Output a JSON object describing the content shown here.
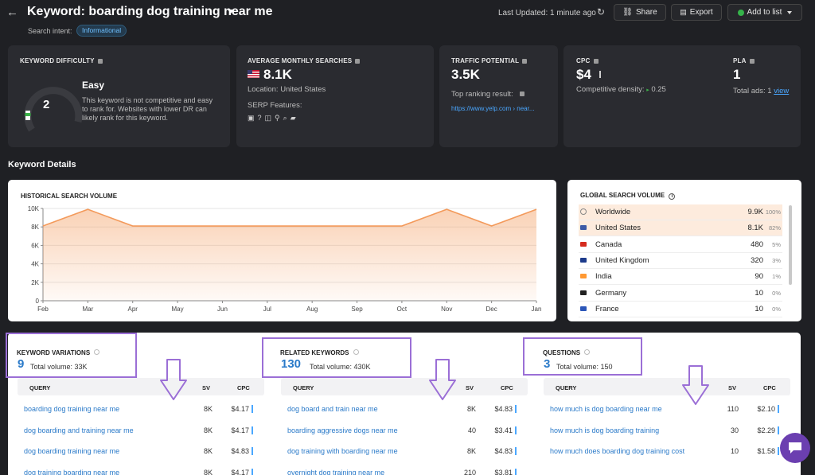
{
  "header": {
    "back_icon": "arrow-left-icon",
    "title": "Keyword: boarding dog training near me",
    "search_intent_label": "Search intent:",
    "search_intent_value": "Informational",
    "last_updated": "Last Updated: 1 minute ago",
    "share_label": "Share",
    "export_label": "Export",
    "add_to_list_label": "Add to list"
  },
  "cards": {
    "difficulty": {
      "title": "KEYWORD DIFFICULTY",
      "value": "2",
      "level": "Easy",
      "gauge_fraction": 0.02,
      "description": "This keyword is not competitive and easy to rank for. Websites with lower DR can likely rank for this keyword."
    },
    "searches": {
      "title": "AVERAGE MONTHLY SEARCHES",
      "value": "8.1K",
      "location": "Location: United States",
      "serp_label": "SERP Features:"
    },
    "traffic": {
      "title": "TRAFFIC POTENTIAL",
      "value": "3.5K",
      "top_ranking_label": "Top ranking result:",
      "top_ranking_url": "https://www.yelp.com › near..."
    },
    "cpc": {
      "title": "CPC",
      "value": "$4",
      "density": "Competitive density:",
      "density_value": "0.25"
    },
    "pla": {
      "title": "PLA",
      "value": "1",
      "total_ads": "Total ads: 1",
      "view_link": "view"
    }
  },
  "section_title": "Keyword Details",
  "historical": {
    "title": "HISTORICAL SEARCH VOLUME",
    "chart_data": {
      "type": "area",
      "x": [
        "Feb",
        "Mar",
        "Apr",
        "May",
        "Jun",
        "Jul",
        "Aug",
        "Sep",
        "Oct",
        "Nov",
        "Dec",
        "Jan"
      ],
      "values": [
        8100,
        9900,
        8100,
        8100,
        8100,
        8100,
        8100,
        8100,
        8100,
        9900,
        8100,
        9900
      ],
      "y_ticks": [
        "0",
        "2K",
        "4K",
        "6K",
        "8K",
        "10K"
      ],
      "ylim": [
        0,
        10000
      ],
      "color": "#f39a5b"
    }
  },
  "global": {
    "title": "GLOBAL SEARCH VOLUME",
    "rows": [
      {
        "name": "Worldwide",
        "value": "9.9K",
        "pct": "100%",
        "color": "#888888"
      },
      {
        "name": "United States",
        "value": "8.1K",
        "pct": "82%",
        "color": "#3c5aa6"
      },
      {
        "name": "Canada",
        "value": "480",
        "pct": "5%",
        "color": "#d52b1e"
      },
      {
        "name": "United Kingdom",
        "value": "320",
        "pct": "3%",
        "color": "#1d3b8b"
      },
      {
        "name": "India",
        "value": "90",
        "pct": "1%",
        "color": "#ff9933"
      },
      {
        "name": "Germany",
        "value": "10",
        "pct": "0%",
        "color": "#222222"
      },
      {
        "name": "France",
        "value": "10",
        "pct": "0%",
        "color": "#2b56b8"
      }
    ]
  },
  "lists": [
    {
      "label": "KEYWORD VARIATIONS",
      "count": "9",
      "volume": "Total volume: 33K",
      "col_query": "QUERY",
      "col_sv": "SV",
      "col_cpc": "CPC",
      "rows": [
        {
          "q": "boarding dog training near me",
          "sv": "8K",
          "cpc": "$4.17"
        },
        {
          "q": "dog boarding and training near me",
          "sv": "8K",
          "cpc": "$4.17"
        },
        {
          "q": "dog boarding training near me",
          "sv": "8K",
          "cpc": "$4.83"
        },
        {
          "q": "dog training boarding near me",
          "sv": "8K",
          "cpc": "$4.17"
        }
      ]
    },
    {
      "label": "RELATED KEYWORDS",
      "count": "130",
      "volume": "Total volume: 430K",
      "col_query": "QUERY",
      "col_sv": "SV",
      "col_cpc": "CPC",
      "rows": [
        {
          "q": "dog board and train near me",
          "sv": "8K",
          "cpc": "$4.83"
        },
        {
          "q": "boarding aggressive dogs near me",
          "sv": "40",
          "cpc": "$3.41"
        },
        {
          "q": "dog training with boarding near me",
          "sv": "8K",
          "cpc": "$4.83"
        },
        {
          "q": "overnight dog training near me",
          "sv": "210",
          "cpc": "$3.81"
        }
      ]
    },
    {
      "label": "QUESTIONS",
      "count": "3",
      "volume": "Total volume: 150",
      "col_query": "QUERY",
      "col_sv": "SV",
      "col_cpc": "CPC",
      "rows": [
        {
          "q": "how much is dog boarding near me",
          "sv": "110",
          "cpc": "$2.10"
        },
        {
          "q": "how much is dog boarding training",
          "sv": "30",
          "cpc": "$2.29"
        },
        {
          "q": "how much does boarding dog training cost",
          "sv": "10",
          "cpc": "$1.58"
        }
      ]
    }
  ]
}
